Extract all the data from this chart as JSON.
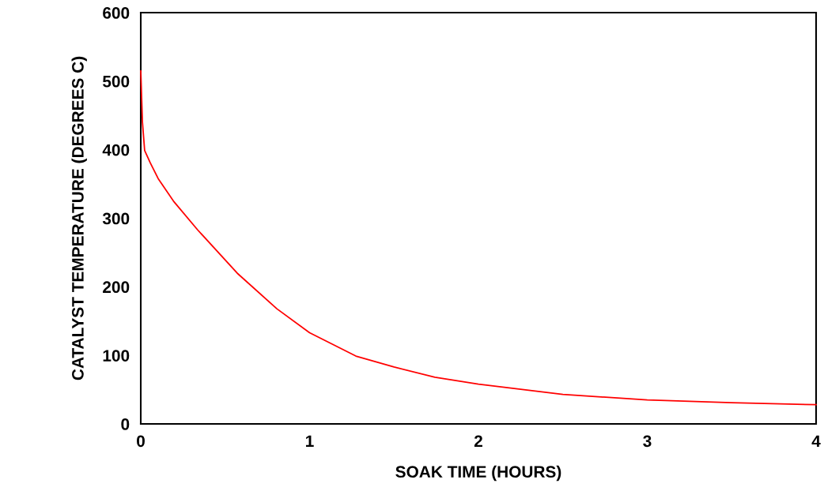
{
  "chart_data": {
    "type": "line",
    "xlabel": "SOAK TIME (HOURS)",
    "ylabel": "CATALYST TEMPERATURE (DEGREES C)",
    "xlim": [
      0,
      4
    ],
    "xticks": [
      0,
      1,
      2,
      3,
      4
    ],
    "ylim": [
      0,
      600
    ],
    "yticks": [
      0,
      100,
      200,
      300,
      400,
      500,
      600
    ],
    "grid": false,
    "series": [
      {
        "color": "#ff0000",
        "x": [
          0,
          0.01,
          0.023,
          0.056,
          0.103,
          0.197,
          0.337,
          0.571,
          0.806,
          1.0,
          1.274,
          1.5,
          1.742,
          2.0,
          2.5,
          3.0,
          3.5,
          4.0
        ],
        "values": [
          515,
          440,
          399,
          381,
          358,
          324,
          283,
          220,
          168,
          133,
          99,
          83,
          68,
          58,
          43,
          35,
          31,
          28
        ]
      }
    ]
  }
}
